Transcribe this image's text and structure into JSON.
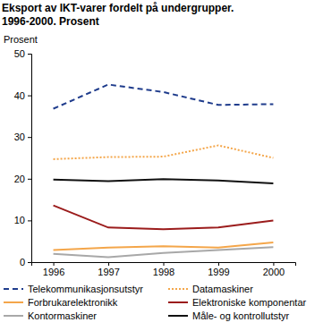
{
  "chart_data": {
    "type": "line",
    "title": "Eksport av IKT-varer fordelt på undergrupper. 1996-2000. Prosent",
    "y_label": "Prosent",
    "x": [
      1996,
      1997,
      1998,
      1999,
      2000
    ],
    "xlim": [
      1995.6,
      2000.4
    ],
    "xticks": [
      1996,
      1997,
      1998,
      1999,
      2000
    ],
    "ylim": [
      0,
      50
    ],
    "yticks": [
      0,
      10,
      20,
      30,
      40,
      50
    ],
    "grid": false,
    "legend": "bottom",
    "series": [
      {
        "name": "Telekommunikasjonsutstyr",
        "color": "#1f3c8c",
        "line_style": "dashed",
        "values": [
          36.8,
          42.6,
          40.8,
          37.7,
          37.9
        ]
      },
      {
        "name": "Datamaskiner",
        "color": "#f4a64a",
        "line_style": "dotted",
        "values": [
          24.7,
          25.2,
          25.3,
          28.0,
          25.0
        ]
      },
      {
        "name": "Forbrukarelektronikk",
        "color": "#f4a64a",
        "line_style": "solid",
        "values": [
          2.9,
          3.5,
          3.8,
          3.5,
          4.7
        ]
      },
      {
        "name": "Elektroniske komponentar",
        "color": "#9b1c1c",
        "line_style": "solid",
        "values": [
          13.6,
          8.3,
          7.9,
          8.3,
          10.0
        ]
      },
      {
        "name": "Kontormaskiner",
        "color": "#a8a8a8",
        "line_style": "solid",
        "values": [
          2.0,
          1.2,
          2.2,
          2.9,
          3.6
        ]
      },
      {
        "name": "Måle- og kontrollutstyr",
        "color": "#111111",
        "line_style": "solid",
        "values": [
          19.8,
          19.4,
          19.9,
          19.6,
          18.9
        ]
      }
    ]
  }
}
